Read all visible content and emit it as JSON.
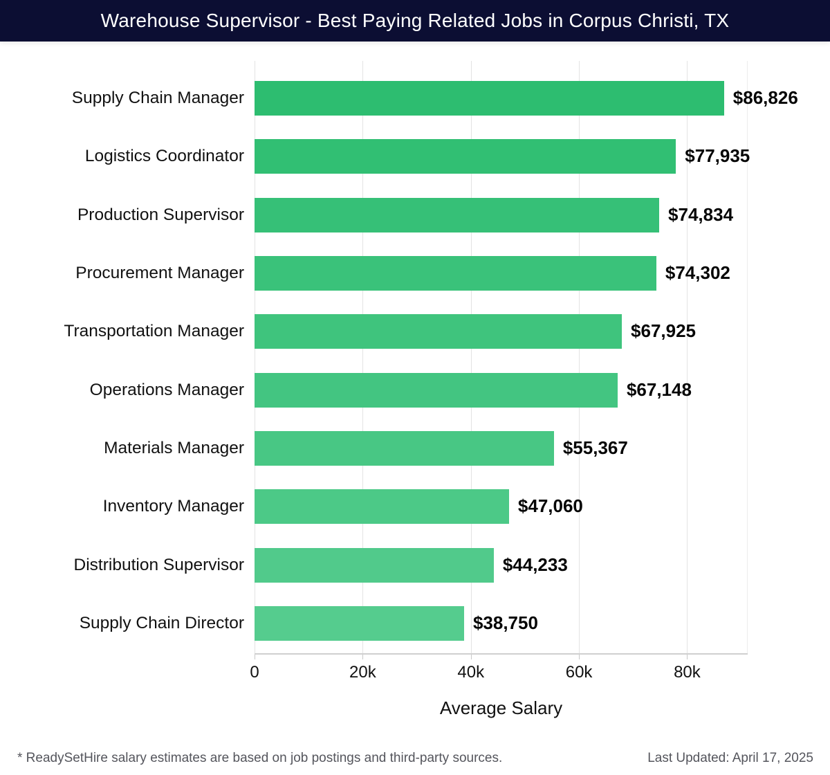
{
  "header": {
    "title": "Warehouse Supervisor - Best Paying Related Jobs in Corpus Christi, TX",
    "background": "#0c0e33",
    "text_color": "#ffffff"
  },
  "chart_data": {
    "type": "bar",
    "orientation": "horizontal",
    "title": "Warehouse Supervisor - Best Paying Related Jobs in Corpus Christi, TX",
    "categories": [
      "Supply Chain Manager",
      "Logistics Coordinator",
      "Production Supervisor",
      "Procurement Manager",
      "Transportation Manager",
      "Operations Manager",
      "Materials Manager",
      "Inventory Manager",
      "Distribution Supervisor",
      "Supply Chain Director"
    ],
    "values": [
      86826,
      77935,
      74834,
      74302,
      67925,
      67148,
      55367,
      47060,
      44233,
      38750
    ],
    "value_labels": [
      "$86,826",
      "$77,935",
      "$74,834",
      "$74,302",
      "$67,925",
      "$67,148",
      "$55,367",
      "$47,060",
      "$44,233",
      "$38,750"
    ],
    "bar_colors": [
      "#2dbd70",
      "#31bf73",
      "#36c077",
      "#3ac27a",
      "#3fc47d",
      "#43c581",
      "#48c784",
      "#4cc987",
      "#51ca8b",
      "#55cc8e"
    ],
    "xlabel": "Average Salary",
    "xlim": [
      0,
      91200
    ],
    "x_ticks": [
      {
        "value": 0,
        "label": "0"
      },
      {
        "value": 20000,
        "label": "20k"
      },
      {
        "value": 40000,
        "label": "40k"
      },
      {
        "value": 60000,
        "label": "60k"
      },
      {
        "value": 80000,
        "label": "80k"
      }
    ],
    "grid": "vertical",
    "legend": "none",
    "gridline_color": "#e3e3e3",
    "axis_color": "#cfcfcf",
    "label_color": "#111111",
    "value_label_color": "#050505"
  },
  "footer": {
    "left": "* ReadySetHire salary estimates are based on job postings and third-party sources.",
    "right": "Last Updated: April 17, 2025",
    "text_color": "#54555c"
  }
}
